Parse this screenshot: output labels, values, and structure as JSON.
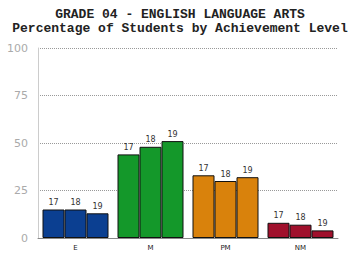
{
  "chart_data": {
    "type": "bar",
    "title": "GRADE 04 - ENGLISH LANGUAGE ARTS",
    "subtitle": "Percentage of Students by Achievement Level",
    "categories": [
      "E",
      "M",
      "PM",
      "NM"
    ],
    "series": [
      {
        "name": "17",
        "values": [
          15,
          44,
          33,
          8
        ]
      },
      {
        "name": "18",
        "values": [
          15,
          48,
          30,
          7
        ]
      },
      {
        "name": "19",
        "values": [
          13,
          51,
          32,
          4
        ]
      }
    ],
    "colors": [
      "#0b3f91",
      "#14982a",
      "#d9820c",
      "#a0102c"
    ],
    "ylim": [
      0,
      100
    ],
    "yticks": [
      0,
      25,
      50,
      75,
      100
    ],
    "grid": true
  }
}
